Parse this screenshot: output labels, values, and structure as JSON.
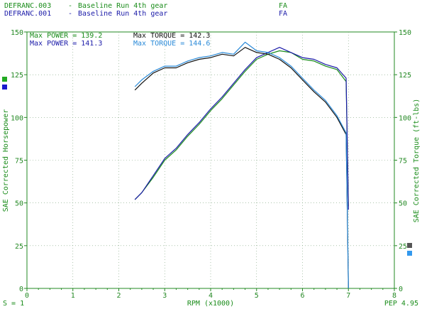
{
  "header": {
    "runs": [
      {
        "file": "DEFRANC.003",
        "desc": "Baseline Run 4th gear",
        "code": "FA",
        "color": "#1a8c1a"
      },
      {
        "file": "DEFRANC.001",
        "desc": "Baseline Run 4th gear",
        "code": "FA",
        "color": "#1a1aa8"
      }
    ]
  },
  "stats": [
    {
      "label": "Max POWER = 139.2",
      "color": "#1a8c1a"
    },
    {
      "label": "Max TORQUE = 142.3",
      "color": "#111111"
    },
    {
      "label": "Max POWER = 141.3",
      "color": "#1a1aa8"
    },
    {
      "label": "Max TORQUE = 144.6",
      "color": "#2a8ad8"
    }
  ],
  "footer": {
    "left": "S = 1",
    "right": "PEP 4.95"
  },
  "colors": {
    "power_run1": "#1a8c1a",
    "power_run2": "#1a1aa8",
    "torque_run1": "#111111",
    "torque_run2": "#2a8ad8",
    "axis": "#228822",
    "legend_green": "#22aa22",
    "legend_blue": "#1a1acc",
    "legend_gray": "#555555",
    "legend_lightblue": "#3399ee"
  },
  "chart_data": {
    "type": "line",
    "xlabel": "RPM (x1000)",
    "ylabel": "SAE Corrected Horsepower",
    "y2label": "SAE Corrected Torque (ft-lbs)",
    "xlim": [
      0,
      8
    ],
    "ylim": [
      0,
      150
    ],
    "y2lim": [
      0,
      150
    ],
    "xticks": [
      "0",
      "1",
      "2",
      "3",
      "4",
      "5",
      "6",
      "7",
      "8"
    ],
    "yticks": [
      "0",
      "25",
      "50",
      "75",
      "100",
      "125",
      "150"
    ],
    "y2ticks": [
      "0",
      "25",
      "50",
      "75",
      "100",
      "125",
      "150"
    ],
    "series": [
      {
        "name": "Max POWER = 139.2",
        "axis": "left",
        "color": "#1a8c1a",
        "x": [
          2.35,
          2.5,
          2.75,
          3.0,
          3.25,
          3.5,
          3.75,
          4.0,
          4.25,
          4.5,
          4.75,
          5.0,
          5.25,
          5.5,
          5.75,
          6.0,
          6.25,
          6.5,
          6.75,
          6.95,
          7.0
        ],
        "y": [
          52,
          56,
          65,
          75,
          81,
          89,
          96,
          104,
          111,
          119,
          127,
          134,
          137,
          139,
          138,
          134,
          133,
          130,
          128,
          121,
          48
        ]
      },
      {
        "name": "Max POWER = 141.3",
        "axis": "left",
        "color": "#1a1aa8",
        "x": [
          2.35,
          2.5,
          2.75,
          3.0,
          3.25,
          3.5,
          3.75,
          4.0,
          4.25,
          4.5,
          4.75,
          5.0,
          5.25,
          5.5,
          5.75,
          6.0,
          6.25,
          6.5,
          6.75,
          6.95,
          7.0
        ],
        "y": [
          52,
          56,
          66,
          76,
          82,
          90,
          97,
          105,
          112,
          120,
          128,
          135,
          138,
          141,
          138,
          135,
          134,
          131,
          129,
          123,
          46
        ]
      },
      {
        "name": "Max TORQUE = 142.3",
        "axis": "right",
        "color": "#111111",
        "x": [
          2.35,
          2.5,
          2.75,
          3.0,
          3.25,
          3.5,
          3.75,
          4.0,
          4.25,
          4.5,
          4.75,
          5.0,
          5.25,
          5.5,
          5.75,
          6.0,
          6.25,
          6.5,
          6.75,
          6.95,
          7.0
        ],
        "y": [
          116,
          120,
          126,
          129,
          129,
          132,
          134,
          135,
          137,
          136,
          141,
          138,
          137,
          134,
          129,
          122,
          115,
          109,
          100,
          90,
          0
        ]
      },
      {
        "name": "Max TORQUE = 144.6",
        "axis": "right",
        "color": "#2a8ad8",
        "x": [
          2.35,
          2.5,
          2.75,
          3.0,
          3.25,
          3.5,
          3.75,
          4.0,
          4.25,
          4.5,
          4.75,
          5.0,
          5.25,
          5.5,
          5.75,
          6.0,
          6.25,
          6.5,
          6.75,
          6.95,
          7.0
        ],
        "y": [
          118,
          122,
          127,
          130,
          130,
          133,
          135,
          136,
          138,
          137,
          144,
          139,
          138,
          135,
          130,
          123,
          116,
          110,
          101,
          91,
          0
        ]
      }
    ],
    "grid": "dotted"
  }
}
